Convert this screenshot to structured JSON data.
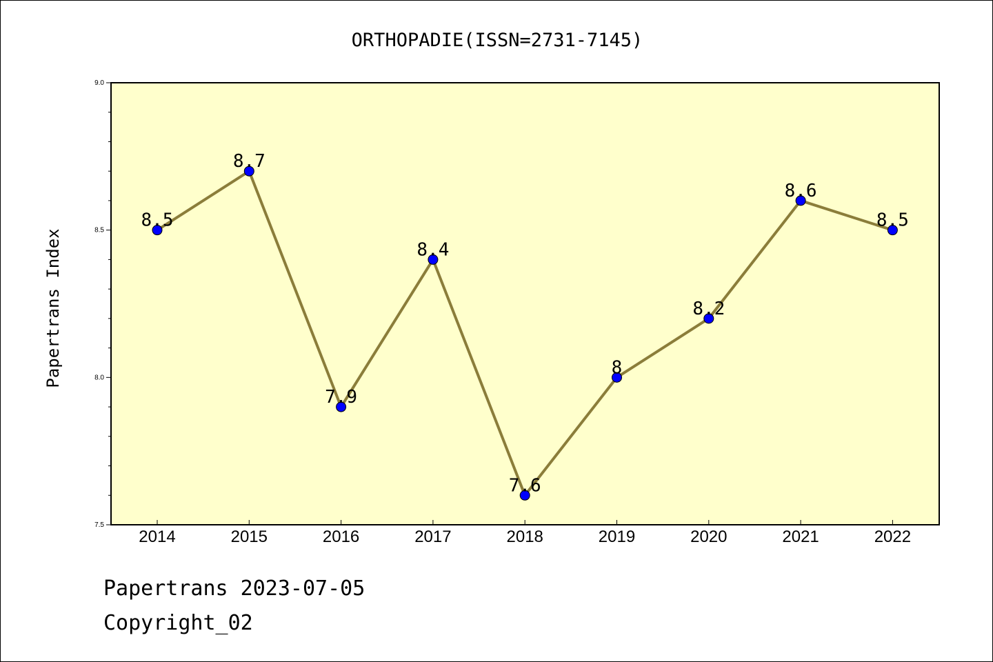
{
  "chart_data": {
    "type": "line",
    "title": "ORTHOPADIE(ISSN=2731-7145)",
    "xlabel": "",
    "ylabel": "Papertrans Index",
    "categories": [
      "2014",
      "2015",
      "2016",
      "2017",
      "2018",
      "2019",
      "2020",
      "2021",
      "2022"
    ],
    "series": [
      {
        "values": [
          8.5,
          8.7,
          7.9,
          8.4,
          7.6,
          8.0,
          8.2,
          8.6,
          8.5
        ],
        "data_labels": [
          "8.5",
          "8.7",
          "7.9",
          "8.4",
          "7.6",
          "8",
          "8.2",
          "8.6",
          "8.5"
        ]
      }
    ],
    "ylim": [
      7.5,
      9.0
    ],
    "y_ticks": [
      "7.5",
      "8.0",
      "8.5",
      "9.0"
    ],
    "grid": false,
    "legend": "none",
    "colors": {
      "line": "#8B7D3A",
      "marker": "#0000FF",
      "plot_background": "#FFFFCC"
    }
  },
  "footer": {
    "date_text": "Papertrans 2023-07-05",
    "copyright_text": "Copyright_02"
  }
}
